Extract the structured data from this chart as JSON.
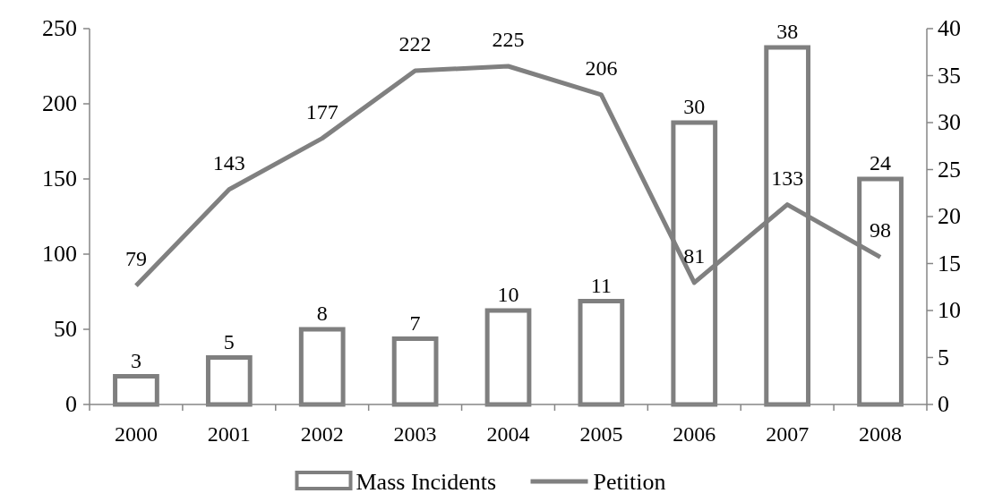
{
  "chart_data": {
    "type": "bar",
    "categories": [
      "2000",
      "2001",
      "2002",
      "2003",
      "2004",
      "2005",
      "2006",
      "2007",
      "2008"
    ],
    "series": [
      {
        "name": "Mass Incidents",
        "axis": "y2",
        "color": "#7f7f7f",
        "values": [
          3,
          5,
          8,
          7,
          10,
          11,
          30,
          38,
          24
        ]
      },
      {
        "name": "Petition",
        "type": "line",
        "color": "#808080",
        "values": [
          79,
          143,
          177,
          222,
          225,
          206,
          81,
          133,
          98
        ]
      }
    ],
    "ylim": [
      0,
      250
    ],
    "yticks": [
      0,
      50,
      100,
      150,
      200,
      250
    ],
    "y2lim": [
      0,
      40
    ],
    "y2ticks": [
      0,
      5,
      10,
      15,
      20,
      25,
      30,
      35,
      40
    ],
    "data_labels": true,
    "grid": false,
    "legend": "bottom",
    "marker": "none",
    "line_style": "solid"
  }
}
